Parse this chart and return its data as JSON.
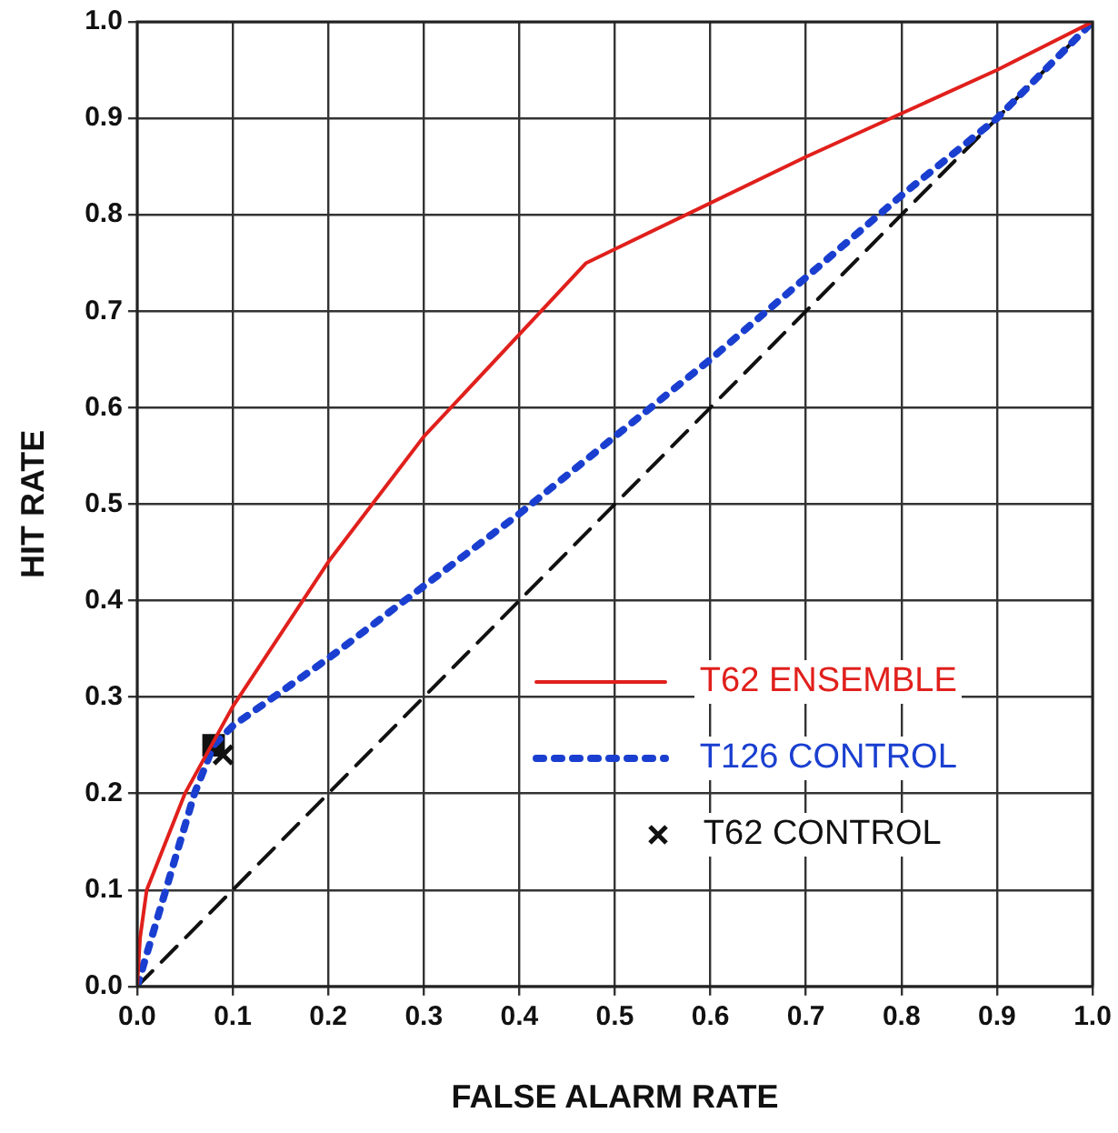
{
  "chart_data": {
    "type": "line",
    "xlabel": "FALSE ALARM RATE",
    "ylabel": "HIT RATE",
    "xlim": [
      0,
      1
    ],
    "ylim": [
      0,
      1
    ],
    "xticks": [
      {
        "value": 0,
        "label": "0.0"
      },
      0.1,
      0.2,
      0.3,
      0.4,
      0.5,
      0.6,
      0.7,
      0.8,
      0.9,
      {
        "value": 1,
        "label": "1.0"
      }
    ],
    "yticks": [
      {
        "value": 0,
        "label": "0.0"
      },
      0.1,
      0.2,
      0.3,
      0.4,
      0.5,
      0.6,
      0.7,
      0.8,
      0.9,
      {
        "value": 1,
        "label": "1.0"
      }
    ],
    "grid": true,
    "legend": "bottom right",
    "series": [
      {
        "name": "T62 ENSEMBLE",
        "type": "line",
        "color": "#e0201c",
        "line_style": "solid",
        "marker": "none",
        "x": [
          0,
          0.003,
          0.01,
          0.05,
          0.1,
          0.2,
          0.3,
          0.47,
          0.7,
          0.9,
          1
        ],
        "values": [
          0,
          0.05,
          0.1,
          0.2,
          0.29,
          0.44,
          0.57,
          0.75,
          0.86,
          0.95,
          1
        ]
      },
      {
        "name": "T126 CONTROL",
        "type": "line",
        "color": "#1a3fd0",
        "line_style": "dotted",
        "marker": "none",
        "x": [
          0,
          0.03,
          0.06,
          0.08,
          0.1,
          0.2,
          0.4,
          0.6,
          0.8,
          0.9,
          1
        ],
        "values": [
          0,
          0.1,
          0.2,
          0.25,
          0.27,
          0.34,
          0.49,
          0.65,
          0.82,
          0.9,
          1
        ]
      },
      {
        "type": "scatter",
        "color": "#111111",
        "marker": "square",
        "x": [
          0.08
        ],
        "values": [
          0.25
        ]
      },
      {
        "name": "T62 CONTROL",
        "type": "scatter",
        "color": "#111111",
        "marker": "cross",
        "x": [
          0.09
        ],
        "values": [
          0.24
        ]
      },
      {
        "type": "line",
        "color": "#111111",
        "line_style": "dashed",
        "marker": "none",
        "x": [
          0,
          1
        ],
        "values": [
          0,
          1
        ]
      }
    ]
  }
}
